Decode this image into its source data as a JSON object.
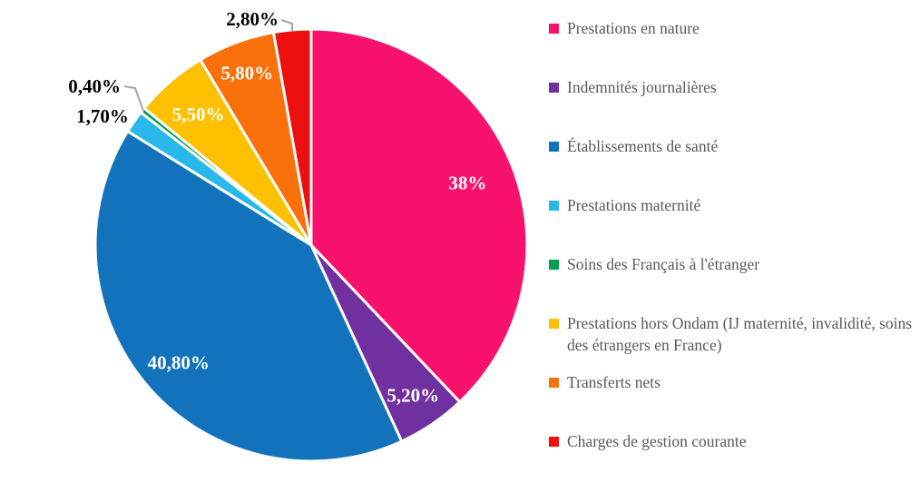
{
  "chart_data": {
    "type": "pie",
    "title": "",
    "legend_position": "right",
    "start_angle_deg": 0,
    "direction": "clockwise",
    "inside_label_color": "#FFFFFF",
    "outside_label_color": "#000000",
    "legend_text_color": "#595959",
    "leader_line_color": "#A6A6A6",
    "slices": [
      {
        "label": "Prestations en nature",
        "value": 38.0,
        "display": "38%",
        "color": "#F8116D",
        "label_position": "inside"
      },
      {
        "label": "Indemnités journalières",
        "value": 5.2,
        "display": "5,20%",
        "color": "#7030A0",
        "label_position": "inside"
      },
      {
        "label": "Établissements de santé",
        "value": 40.8,
        "display": "40,80%",
        "color": "#1272BC",
        "label_position": "inside"
      },
      {
        "label": "Prestations maternité",
        "value": 1.7,
        "display": "1,70%",
        "color": "#29B8EC",
        "label_position": "outside"
      },
      {
        "label": "Soins des Français à l'étranger",
        "value": 0.4,
        "display": "0,40%",
        "color": "#00A04E",
        "label_position": "outside-leader"
      },
      {
        "label": "Prestations hors Ondam (IJ maternité, invalidité, soins des étrangers en France)",
        "value": 5.5,
        "display": "5,50%",
        "color": "#FFC000",
        "label_position": "inside"
      },
      {
        "label": "Transferts nets",
        "value": 5.8,
        "display": "5,80%",
        "color": "#FA700A",
        "label_position": "inside"
      },
      {
        "label": "Charges de gestion courante",
        "value": 2.8,
        "display": "2,80%",
        "color": "#EE0F0F",
        "label_position": "outside-leader"
      }
    ]
  }
}
